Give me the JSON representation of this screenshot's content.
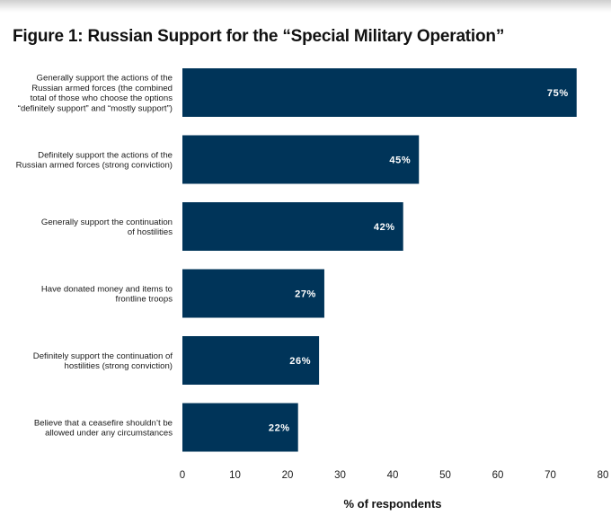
{
  "chart_data": {
    "type": "bar",
    "orientation": "horizontal",
    "title": "Figure 1: Russian Support for the “Special Military Operation”",
    "xlabel": "% of respondents",
    "ylabel": "",
    "xlim": [
      0,
      80
    ],
    "xticks": [
      0,
      10,
      20,
      30,
      40,
      50,
      60,
      70,
      80
    ],
    "grid": false,
    "bar_color": "#003459",
    "categories": [
      [
        "Generally support the actions of the",
        "Russian armed forces (the combined",
        "total of those who choose the options",
        "“definitely support” and “mostly support”)"
      ],
      [
        "Definitely support the actions of the",
        "Russian armed forces (strong conviction)"
      ],
      [
        "Generally support the continuation",
        "of hostilities"
      ],
      [
        "Have donated money and items to",
        "frontline troops"
      ],
      [
        "Definitely support the continuation of",
        "hostilities (strong conviction)"
      ],
      [
        "Believe that a ceasefire shouldn’t be",
        "allowed under any circumstances"
      ]
    ],
    "values": [
      75,
      45,
      42,
      27,
      26,
      22
    ],
    "data_labels": [
      "75%",
      "45%",
      "42%",
      "27%",
      "26%",
      "22%"
    ]
  }
}
